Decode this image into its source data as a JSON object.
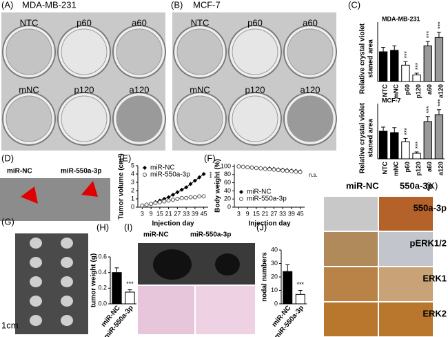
{
  "panels": {
    "A": {
      "label": "(A)",
      "title": "MDA-MB-231",
      "plates": [
        "NTC",
        "p60",
        "a60",
        "mNC",
        "p120",
        "a120"
      ]
    },
    "B": {
      "label": "(B)",
      "title": "MCF-7",
      "plates": [
        "NTC",
        "p60",
        "a60",
        "mNC",
        "p120",
        "a120"
      ]
    },
    "C": {
      "label": "(C)"
    },
    "D": {
      "label": "(D)",
      "groups": [
        "miR-NC",
        "miR-550a-3p"
      ]
    },
    "E": {
      "label": "(E)"
    },
    "F": {
      "label": "(F)"
    },
    "G": {
      "label": "(G)",
      "scale": "1cm"
    },
    "H": {
      "label": "(H)"
    },
    "I": {
      "label": "(I)",
      "groups": [
        "miR-NC",
        "miR-550a-3p"
      ]
    },
    "J": {
      "label": "(J)"
    },
    "K": {
      "label": "(K)",
      "columns": [
        "miR-NC",
        "550a-3p"
      ],
      "rows": [
        "550a-3p",
        "pERK1/2",
        "ERK1",
        "ERK2"
      ]
    }
  },
  "chart_data": [
    {
      "type": "bar",
      "subtitle": "MDA-MB-231",
      "y_label": [
        "Relative crystal violet",
        "staned area"
      ],
      "categories": [
        "NTC",
        "mNC",
        "p60",
        "p120",
        "a60",
        "a120"
      ],
      "values": [
        1.0,
        1.05,
        0.55,
        0.22,
        1.2,
        1.48
      ],
      "errors": [
        0.15,
        0.15,
        0.12,
        0.06,
        0.15,
        0.18
      ],
      "colors": [
        "#000000",
        "#000000",
        "#ffffff",
        "#ffffff",
        "#999999",
        "#999999"
      ],
      "ylim": [
        0,
        2
      ],
      "annotations": [
        {
          "index": 2,
          "text": "***"
        },
        {
          "index": 3,
          "text": "***"
        },
        {
          "index": 4,
          "text": "***"
        },
        {
          "index": 5,
          "text": "***"
        }
      ]
    },
    {
      "type": "bar",
      "subtitle": "MCF-7",
      "y_label": [
        "Relative crystal violet",
        "staned area"
      ],
      "categories": [
        "NTC",
        "mNC",
        "p60",
        "p120",
        "a60",
        "a120"
      ],
      "values": [
        1.0,
        0.95,
        0.62,
        0.2,
        1.35,
        1.6
      ],
      "errors": [
        0.15,
        0.18,
        0.12,
        0.05,
        0.18,
        0.18
      ],
      "colors": [
        "#000000",
        "#000000",
        "#ffffff",
        "#ffffff",
        "#999999",
        "#999999"
      ],
      "ylim": [
        0,
        2
      ],
      "annotations": [
        {
          "index": 2,
          "text": "***"
        },
        {
          "index": 3,
          "text": "***"
        },
        {
          "index": 4,
          "text": "***"
        },
        {
          "index": 5,
          "text": "***"
        }
      ]
    },
    {
      "type": "line",
      "y_label": "Tumor volume (cm³)",
      "x_label": "Injection day",
      "x": [
        3,
        6,
        9,
        12,
        15,
        18,
        21,
        24,
        27,
        30,
        33,
        36,
        39,
        42,
        45
      ],
      "xlim": [
        0,
        48
      ],
      "xticks": [
        3,
        9,
        15,
        21,
        27,
        33,
        39,
        45
      ],
      "ylim": [
        0,
        5
      ],
      "yticks": [
        0,
        1,
        2,
        3,
        4,
        5
      ],
      "series": [
        {
          "name": "miR-NC",
          "color": "#000000",
          "marker": "diamond",
          "values": [
            0.2,
            0.3,
            0.4,
            0.6,
            0.8,
            1.0,
            1.2,
            1.5,
            1.8,
            2.1,
            2.4,
            2.8,
            3.2,
            3.6,
            4.0
          ]
        },
        {
          "name": "miR-550a-3p",
          "color": "#555555",
          "marker": "circle",
          "values": [
            0.2,
            0.3,
            0.4,
            0.5,
            0.6,
            0.7,
            0.8,
            0.9,
            1.0,
            1.1,
            1.1,
            1.2,
            1.2,
            1.3,
            1.3
          ]
        }
      ],
      "annotation": "***"
    },
    {
      "type": "line",
      "y_label": "Body weight (%)",
      "x_label": "Injection day",
      "x": [
        3,
        6,
        9,
        12,
        15,
        18,
        21,
        24,
        27,
        30,
        33,
        36,
        39,
        42,
        45
      ],
      "xlim": [
        0,
        48
      ],
      "xticks": [
        3,
        9,
        15,
        21,
        27,
        33,
        39,
        45
      ],
      "ylim": [
        0,
        105
      ],
      "yticks": [
        0,
        20,
        40,
        60,
        80,
        100
      ],
      "series": [
        {
          "name": "miR-NC",
          "color": "#000000",
          "marker": "diamond",
          "values": [
            100,
            99,
            98,
            98,
            97,
            96,
            95,
            95,
            94,
            93,
            92,
            91,
            90,
            89,
            88
          ]
        },
        {
          "name": "miR-550a-3p",
          "color": "#555555",
          "marker": "circle",
          "values": [
            100,
            99,
            98,
            97,
            96,
            95,
            94,
            93,
            92,
            91,
            90,
            89,
            88,
            87,
            86
          ]
        }
      ],
      "annotation": "n.s."
    },
    {
      "type": "bar",
      "y_label": "tumor weight (g)",
      "categories": [
        "miR-NC",
        "miR-550a-3p"
      ],
      "values": [
        0.4,
        0.15
      ],
      "errors": [
        0.06,
        0.03
      ],
      "colors": [
        "#000000",
        "#ffffff"
      ],
      "ylim": [
        0,
        0.6
      ],
      "yticks": [
        {
          "value": 0,
          "label": "0.0"
        },
        0.2,
        0.4,
        0.6
      ],
      "annotations": [
        {
          "index": 1,
          "text": "***"
        }
      ]
    },
    {
      "type": "bar",
      "y_label": "nodal numbers",
      "categories": [
        "miR-NC",
        "miR-550a-3p"
      ],
      "values": [
        24,
        7
      ],
      "errors": [
        5,
        3
      ],
      "colors": [
        "#000000",
        "#ffffff"
      ],
      "ylim": [
        0,
        40
      ],
      "yticks": [
        0,
        10,
        20,
        30,
        40
      ],
      "annotations": [
        {
          "index": 1,
          "text": "***"
        }
      ]
    }
  ]
}
